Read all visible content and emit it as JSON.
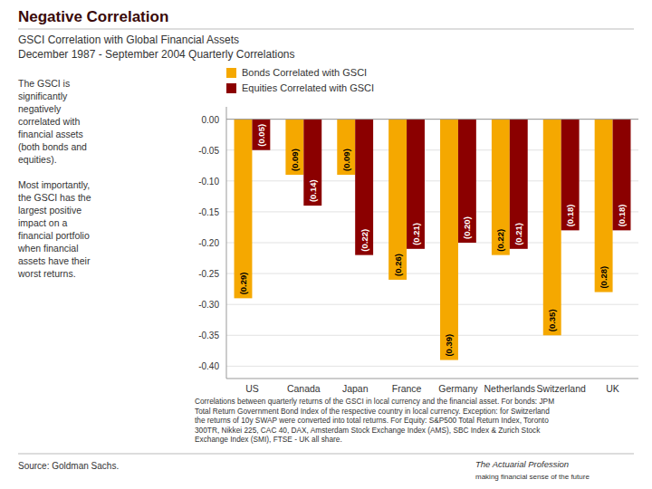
{
  "chart_data": {
    "type": "bar",
    "title": "Negative Correlation",
    "subtitle": "GSCI Correlation with Global Financial Assets",
    "annotations": [
      "December 1987 - September 2004 Quarterly Correlations",
      "The GSCI is\nsignificantly\nnegatively\ncorrelated with\nfinancial assets\n(both bonds and\nequities).\n\nMost importantly,\nthe GSCI has the\nlargest positive\nimpact on a\nfinancial portfolio\nwhen financial\nassets have their\nworst returns.",
      "Correlations between quarterly returns of the GSCI in local currency and the financial asset. For bonds: JPM\nTotal Return Government Bond Index of the respective country in local currency. Exception: for Switzerland\nthe returns of 10y SWAP were converted into total returns. For Equity: S&P500 Total Return Index, Toronto\n300TR, Nikkei 225, CAC 40, DAX, Amsterdam Stock Exchange Index (AMS), SBC Index & Zurich Stock\nExchange Index (SMI), FTSE - UK all share.",
      "Source: Goldman Sachs.",
      "The Actuarial Profession",
      "making financial sense of the future"
    ],
    "categories": [
      "US",
      "Canada",
      "Japan",
      "France",
      "Germany",
      "Netherlands",
      "Switzerland",
      "UK"
    ],
    "series": [
      {
        "name": "Bonds Correlated with GSCI",
        "color": "#F5A800",
        "values": [
          -0.29,
          -0.09,
          -0.09,
          -0.26,
          -0.39,
          -0.22,
          -0.35,
          -0.28
        ],
        "value_labels": [
          "(0.29)",
          "(0.09)",
          "(0.09)",
          "(0.26)",
          "(0.39)",
          "(0.22)",
          "(0.35)",
          "(0.28)"
        ]
      },
      {
        "name": "Equities Correlated with GSCI",
        "color": "#8B0000",
        "values": [
          -0.05,
          -0.14,
          -0.22,
          -0.21,
          -0.2,
          -0.21,
          -0.18,
          -0.18
        ],
        "value_labels": [
          "(0.05)",
          "(0.14)",
          "(0.22)",
          "(0.21)",
          "(0.20)",
          "(0.21)",
          "(0.18)",
          "(0.18)"
        ]
      }
    ],
    "ylim": [
      -0.42,
      0.02
    ],
    "yticks": [
      {
        "value": 0.0,
        "label": "0.00"
      },
      {
        "value": -0.05,
        "label": "-0.05"
      },
      {
        "value": -0.1,
        "label": "-0.10"
      },
      {
        "value": -0.15,
        "label": "-0.15"
      },
      {
        "value": -0.2,
        "label": "-0.20"
      },
      {
        "value": -0.25,
        "label": "-0.25"
      },
      {
        "value": -0.3,
        "label": "-0.30"
      },
      {
        "value": -0.35,
        "label": "-0.35"
      },
      {
        "value": -0.4,
        "label": "-0.40"
      }
    ],
    "grid": true,
    "legend": "top-left",
    "data_labels": true
  }
}
